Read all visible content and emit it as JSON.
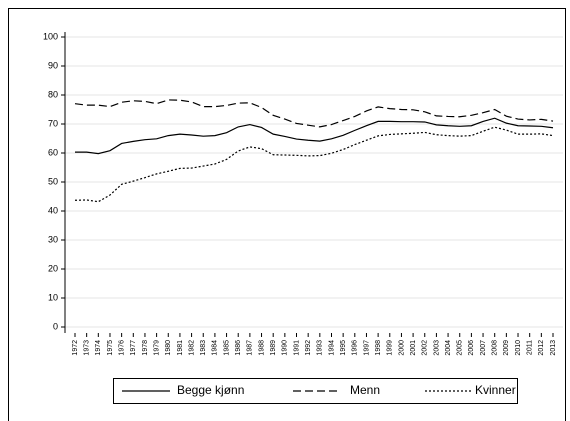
{
  "chart_data": {
    "type": "line",
    "x": [
      1972,
      1973,
      1974,
      1975,
      1976,
      1977,
      1978,
      1979,
      1980,
      1981,
      1982,
      1983,
      1984,
      1985,
      1986,
      1987,
      1988,
      1989,
      1990,
      1991,
      1992,
      1993,
      1994,
      1995,
      1996,
      1997,
      1998,
      1999,
      2000,
      2001,
      2002,
      2003,
      2004,
      2005,
      2006,
      2007,
      2008,
      2009,
      2010,
      2011,
      2012,
      2013
    ],
    "series": [
      {
        "name": "Begge kjønn",
        "color": "#000000",
        "style": "solid",
        "values": [
          60.3,
          60.3,
          59.8,
          60.8,
          63.3,
          64,
          64.6,
          64.9,
          66,
          66.5,
          66.2,
          65.8,
          66,
          67,
          69,
          69.8,
          68.8,
          66.5,
          65.7,
          64.8,
          64.4,
          64.1,
          64.9,
          66.1,
          67.8,
          69.4,
          70.9,
          70.9,
          70.8,
          70.8,
          70.7,
          69.7,
          69.4,
          69.2,
          69.4,
          70.9,
          72,
          70.3,
          69.4,
          69.3,
          69.2,
          68.7
        ]
      },
      {
        "name": "Menn",
        "color": "#000000",
        "style": "dashed",
        "values": [
          77,
          76.5,
          76.5,
          76,
          77.5,
          78,
          77.8,
          77,
          78.3,
          78.2,
          77.6,
          76,
          76,
          76.4,
          77.2,
          77.3,
          75.7,
          73,
          71.7,
          70.2,
          69.6,
          69,
          69.8,
          71.2,
          72.6,
          74.5,
          75.9,
          75.3,
          75,
          74.9,
          74.2,
          72.8,
          72.6,
          72.5,
          73,
          73.9,
          75,
          72.7,
          71.7,
          71.4,
          71.6,
          71
        ]
      },
      {
        "name": "Kvinner",
        "color": "#000000",
        "style": "dotted",
        "values": [
          43.7,
          43.8,
          43.2,
          45.5,
          49.2,
          50.3,
          51.5,
          52.8,
          53.7,
          54.7,
          54.8,
          55.5,
          56.2,
          57.8,
          60.7,
          62.1,
          61.5,
          59.4,
          59.3,
          59.2,
          59,
          59.1,
          59.9,
          61.2,
          62.9,
          64.4,
          65.9,
          66.4,
          66.6,
          66.8,
          67.1,
          66.3,
          66,
          65.8,
          66,
          67.5,
          68.9,
          67.9,
          66.5,
          66.5,
          66.6,
          66
        ]
      }
    ],
    "xlim": [
      1972,
      2013
    ],
    "ylim": [
      0,
      100
    ],
    "yticks": [
      0,
      10,
      20,
      30,
      40,
      50,
      60,
      70,
      80,
      90,
      100
    ],
    "grid": true,
    "legend": "bottom"
  }
}
